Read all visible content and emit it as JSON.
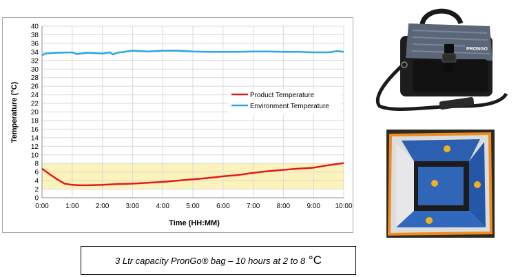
{
  "chart_data": {
    "type": "line",
    "title": "",
    "xlabel": "Time (HH:MM)",
    "ylabel": "Temperature (°C)",
    "ylim": [
      0,
      40
    ],
    "y_ticks": [
      0,
      2,
      4,
      6,
      8,
      10,
      12,
      14,
      16,
      18,
      20,
      22,
      24,
      26,
      28,
      30,
      32,
      34,
      36,
      38,
      40
    ],
    "x_tick_labels": [
      "0:00",
      "1:00",
      "2:00",
      "3:00",
      "4:00",
      "5:00",
      "6:00",
      "7:00",
      "8:00",
      "9:00",
      "10:00"
    ],
    "xlim_hours": [
      0,
      10
    ],
    "grid": true,
    "legend_position": "center-right",
    "shaded_band": {
      "from": 2,
      "to": 8,
      "color": "#fbf3b9"
    },
    "series": [
      {
        "name": "Product Temperature",
        "color": "#e31a1c",
        "x": [
          0,
          0.25,
          0.5,
          0.75,
          1,
          1.25,
          1.5,
          2,
          2.5,
          3,
          3.5,
          4,
          4.5,
          5,
          5.5,
          6,
          6.5,
          7,
          7.5,
          8,
          8.5,
          9,
          9.5,
          10
        ],
        "values": [
          6.8,
          5.5,
          4.3,
          3.3,
          3.0,
          2.9,
          2.9,
          3.0,
          3.2,
          3.3,
          3.5,
          3.7,
          4.0,
          4.3,
          4.6,
          5.0,
          5.3,
          5.8,
          6.2,
          6.5,
          6.8,
          7.0,
          7.6,
          8.1
        ]
      },
      {
        "name": "Environment Temperature",
        "color": "#2aa8df",
        "x": [
          0,
          0.1,
          0.5,
          1,
          1.15,
          1.5,
          2,
          2.25,
          2.35,
          2.5,
          3,
          3.5,
          4,
          4.5,
          5,
          5.5,
          6,
          6.5,
          7,
          7.5,
          8,
          8.5,
          9,
          9.5,
          9.8,
          10
        ],
        "values": [
          33.2,
          33.6,
          33.8,
          33.9,
          33.5,
          33.8,
          33.6,
          33.9,
          33.4,
          33.8,
          34.3,
          34.1,
          34.3,
          34.3,
          34.1,
          34.0,
          34.0,
          34.0,
          34.1,
          34.1,
          34.0,
          34.0,
          33.9,
          33.9,
          34.2,
          34.0
        ]
      }
    ]
  },
  "photos": {
    "bag_brand": "PRONGO"
  },
  "caption": {
    "text": "3 Ltr capacity PronGo® bag – 10 hours at 2 to 8",
    "unit": "°C"
  }
}
